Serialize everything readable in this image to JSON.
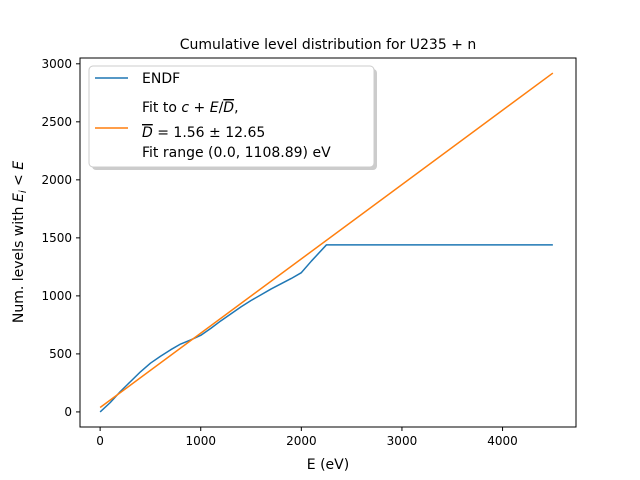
{
  "chart_data": {
    "type": "line",
    "title": "Cumulative level distribution for U235 + n",
    "xlabel": "E (eV)",
    "ylabel": "Num. levels with E_i < E",
    "xlim": [
      -200,
      4730
    ],
    "ylim": [
      -130,
      3050
    ],
    "xticks": [
      0,
      1000,
      2000,
      3000,
      4000
    ],
    "yticks": [
      0,
      500,
      1000,
      1500,
      2000,
      2500,
      3000
    ],
    "grid": false,
    "legend_position": "top-left",
    "series": [
      {
        "name": "ENDF",
        "color": "#1f77b4",
        "x": [
          0,
          100,
          200,
          300,
          400,
          500,
          600,
          700,
          800,
          900,
          1000,
          1100,
          1200,
          1300,
          1400,
          1500,
          1600,
          1700,
          1800,
          1900,
          2000,
          2100,
          2250,
          2650,
          3300,
          4500
        ],
        "y": [
          0,
          80,
          175,
          260,
          345,
          420,
          480,
          535,
          585,
          620,
          660,
          720,
          785,
          845,
          905,
          960,
          1010,
          1060,
          1105,
          1150,
          1200,
          1300,
          1440,
          1440,
          1440,
          1440
        ]
      },
      {
        "name": "Fit",
        "color": "#ff7f0e",
        "x": [
          0,
          4500
        ],
        "y": [
          38,
          2920
        ]
      }
    ],
    "legend": {
      "entry1": "ENDF",
      "fit_line1_prefix": "Fit to ",
      "fit_line1_formula": "c + E/D,",
      "fit_line2_formula": "D = 1.56 ± 12.65",
      "fit_line3": "Fit range (0.0, 1108.89) eV"
    }
  }
}
